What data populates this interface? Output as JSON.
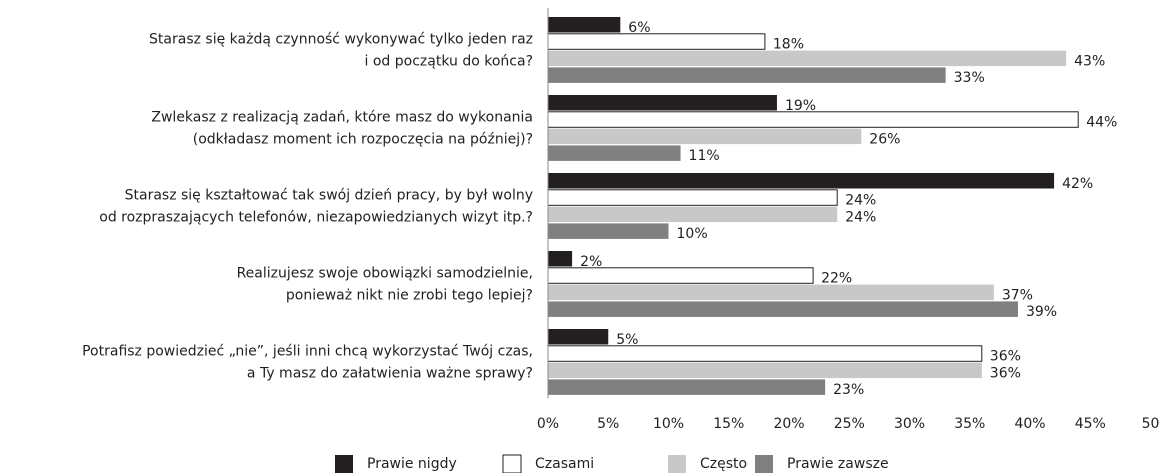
{
  "chart_data": {
    "type": "bar",
    "orientation": "horizontal",
    "categories": [
      [
        "Starasz się każdą czynność wykonywać tylko jeden raz",
        "i od początku do końca?"
      ],
      [
        "Zwlekasz z realizacją zadań, które masz do wykonania",
        "(odkładasz moment ich rozpoczęcia na później)?"
      ],
      [
        "Starasz się kształtować tak swój dzień pracy, by był wolny",
        "od rozpraszających telefonów, niezapowiedzianych wizyt itp.?"
      ],
      [
        "Realizujesz swoje obowiązki samodzielnie,",
        "ponieważ nikt nie zrobi tego lepiej?"
      ],
      [
        "Potrafisz powiedzieć „nie”, jeśli inni chcą wykorzystać Twój czas,",
        "a Ty masz do załatwienia ważne sprawy?"
      ]
    ],
    "series": [
      {
        "name": "Prawie nigdy",
        "color": "#231f20",
        "values": [
          6,
          19,
          42,
          2,
          5
        ],
        "value_labels": [
          "6%",
          "19%",
          "42%",
          "2%",
          "5%"
        ]
      },
      {
        "name": "Czasami",
        "color": "#ffffff",
        "values": [
          18,
          44,
          24,
          22,
          36
        ],
        "value_labels": [
          "18%",
          "44%",
          "24%",
          "22%",
          "36%"
        ]
      },
      {
        "name": "Często",
        "color": "#c8c8c8",
        "values": [
          43,
          26,
          24,
          37,
          36
        ],
        "value_labels": [
          "43%",
          "26%",
          "24%",
          "37%",
          "36%"
        ]
      },
      {
        "name": "Prawie zawsze",
        "color": "#808080",
        "values": [
          33,
          11,
          10,
          39,
          23
        ],
        "value_labels": [
          "33%",
          "11%",
          "10%",
          "39%",
          "23%"
        ]
      }
    ],
    "xlim": [
      0,
      50
    ],
    "xticks": [
      {
        "value": 0,
        "label": "0%"
      },
      {
        "value": 5,
        "label": "5%"
      },
      {
        "value": 10,
        "label": "10%"
      },
      {
        "value": 15,
        "label": "15%"
      },
      {
        "value": 20,
        "label": "20%"
      },
      {
        "value": 25,
        "label": "25%"
      },
      {
        "value": 30,
        "label": "30%"
      },
      {
        "value": 35,
        "label": "35%"
      },
      {
        "value": 40,
        "label": "40%"
      },
      {
        "value": 45,
        "label": "45%"
      },
      50
    ],
    "legend": "bottom"
  }
}
